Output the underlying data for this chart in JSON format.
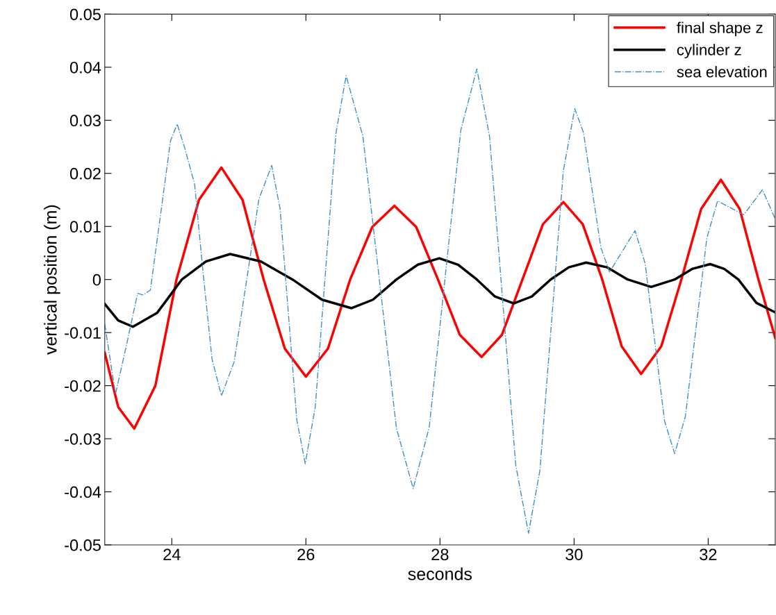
{
  "chart_data": {
    "type": "line",
    "xlabel": "seconds",
    "ylabel": "vertical position (m)",
    "xlim": [
      23,
      33
    ],
    "ylim": [
      -0.05,
      0.05
    ],
    "xticks": [
      24,
      26,
      28,
      30,
      32
    ],
    "yticks": [
      -0.05,
      -0.04,
      -0.03,
      -0.02,
      -0.01,
      0,
      0.01,
      0.02,
      0.03,
      0.04,
      0.05
    ],
    "grid": false,
    "legend": "top right",
    "marker": "none",
    "series": [
      {
        "name": "final shape z",
        "color": "#ff0000",
        "line_style": "solid",
        "x": [
          23,
          23.2,
          23.44,
          23.755,
          24.07,
          24.405,
          24.74,
          25.055,
          25.37,
          25.685,
          26.0,
          26.33,
          26.66,
          26.99,
          27.32,
          27.645,
          27.97,
          28.295,
          28.62,
          28.925,
          29.23,
          29.535,
          29.84,
          30.13,
          30.42,
          30.71,
          31.0,
          31.3,
          31.6,
          31.895,
          32.19,
          32.47,
          32.75,
          33
        ],
        "values": [
          -0.0138,
          -0.024,
          -0.0281,
          -0.02,
          0,
          0.015,
          0.0211,
          0.015,
          0,
          -0.013,
          -0.0183,
          -0.013,
          0,
          0.0099,
          0.0139,
          0.0099,
          0,
          -0.0104,
          -0.0146,
          -0.0104,
          0,
          0.0104,
          0.0146,
          0.0104,
          0,
          -0.0126,
          -0.0178,
          -0.0126,
          0,
          0.0133,
          0.0188,
          0.0133,
          0,
          -0.011
        ]
      },
      {
        "name": "cylinder z",
        "color": "#000000",
        "line_style": "solid",
        "x": [
          23,
          23.2,
          23.42,
          23.78,
          24.15,
          24.51,
          24.87,
          25.33,
          25.8,
          26.24,
          26.68,
          27.0,
          27.35,
          27.67,
          27.99,
          28.27,
          28.55,
          28.82,
          29.1,
          29.37,
          29.65,
          29.92,
          30.18,
          30.49,
          30.8,
          31.15,
          31.5,
          31.76,
          32.03,
          32.24,
          32.45,
          32.72,
          33
        ],
        "values": [
          -0.0046,
          -0.0077,
          -0.0089,
          -0.0063,
          0,
          0.0034,
          0.0048,
          0.0034,
          0,
          -0.0038,
          -0.0054,
          -0.0038,
          0,
          0.0028,
          0.004,
          0.0028,
          0,
          -0.0032,
          -0.0045,
          -0.0032,
          0,
          0.0023,
          0.0032,
          0.0023,
          0,
          -0.0014,
          0,
          0.002,
          0.0029,
          0.002,
          0,
          -0.0044,
          -0.0062
        ]
      },
      {
        "name": "sea elevation",
        "color": "#3c8fcc",
        "line_style": "dashdot",
        "x": [
          23,
          23.16,
          23.33,
          23.49,
          23.57,
          23.68,
          23.83,
          23.98,
          24.08,
          24.19,
          24.34,
          24.465,
          24.6,
          24.74,
          24.93,
          25.115,
          25.3,
          25.49,
          25.615,
          25.74,
          25.865,
          25.99,
          26.14,
          26.295,
          26.45,
          26.6,
          26.85,
          27.1,
          27.35,
          27.6,
          27.84,
          28.075,
          28.31,
          28.55,
          28.74,
          28.935,
          29.13,
          29.32,
          29.49,
          29.665,
          29.84,
          30.01,
          30.14,
          30.27,
          30.4,
          30.53,
          30.82,
          30.91,
          31.06,
          31.205,
          31.35,
          31.5,
          31.66,
          31.82,
          31.98,
          32.14,
          32.53,
          32.81,
          33
        ],
        "values": [
          -0.0084,
          -0.0216,
          -0.012,
          -0.0026,
          -0.0029,
          -0.002,
          0.012,
          0.0261,
          0.0293,
          0.0249,
          0.018,
          0.0015,
          -0.015,
          -0.0219,
          -0.0155,
          -0.0002,
          0.0152,
          0.0215,
          0.0133,
          -0.0066,
          -0.0265,
          -0.0347,
          -0.024,
          0.0019,
          0.0277,
          0.0384,
          0.027,
          -0.0005,
          -0.028,
          -0.0394,
          -0.0278,
          0.0002,
          0.0281,
          0.0397,
          0.0269,
          -0.004,
          -0.035,
          -0.0478,
          -0.036,
          -0.0078,
          0.0205,
          0.0322,
          0.0277,
          0.0168,
          0.006,
          0.0014,
          0.0074,
          0.0092,
          0.003,
          -0.0118,
          -0.0267,
          -0.0328,
          -0.0258,
          -0.009,
          0.0078,
          0.0148,
          0.0122,
          0.0169,
          0.0114
        ]
      }
    ]
  }
}
